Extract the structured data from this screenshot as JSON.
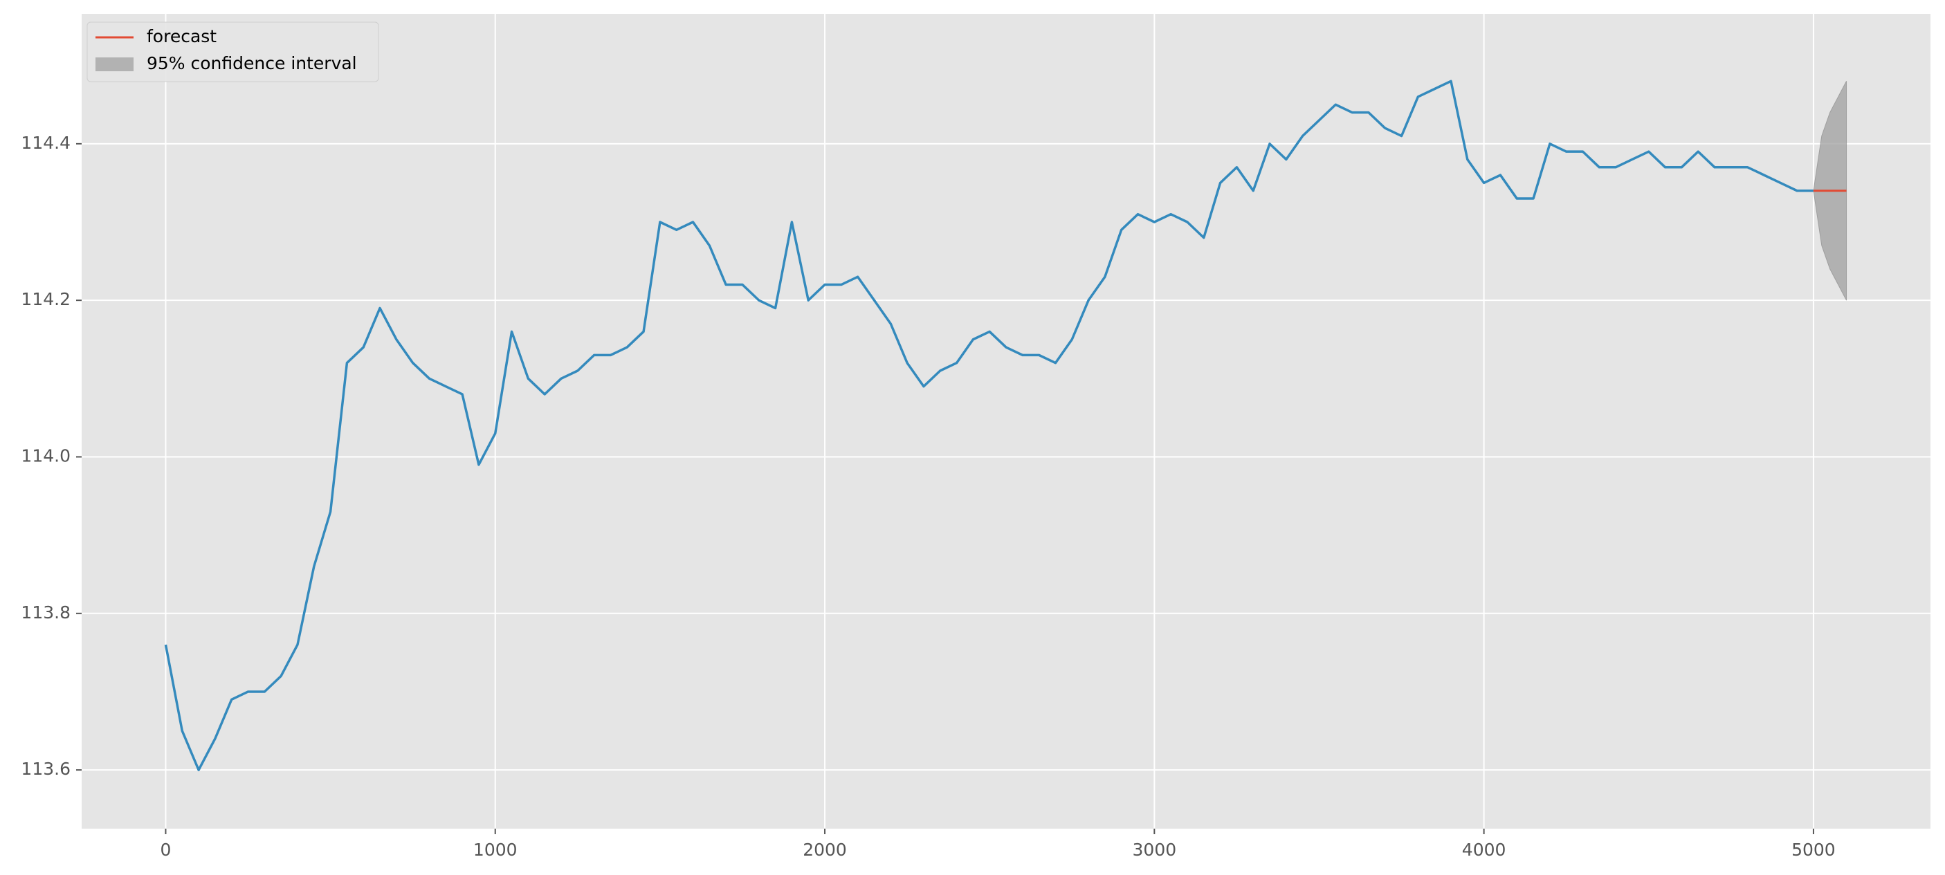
{
  "chart_data": {
    "type": "line",
    "series": [
      {
        "color": "#348abd",
        "x": [
          0,
          50,
          100,
          150,
          200,
          250,
          300,
          350,
          400,
          450,
          500,
          550,
          600,
          650,
          700,
          750,
          800,
          850,
          900,
          950,
          1000,
          1050,
          1100,
          1150,
          1200,
          1250,
          1300,
          1350,
          1400,
          1450,
          1500,
          1550,
          1600,
          1650,
          1700,
          1750,
          1800,
          1850,
          1900,
          1950,
          2000,
          2050,
          2100,
          2150,
          2200,
          2250,
          2300,
          2350,
          2400,
          2450,
          2500,
          2550,
          2600,
          2650,
          2700,
          2750,
          2800,
          2850,
          2900,
          2950,
          3000,
          3050,
          3100,
          3150,
          3200,
          3250,
          3300,
          3350,
          3400,
          3450,
          3500,
          3550,
          3600,
          3650,
          3700,
          3750,
          3800,
          3850,
          3900,
          3950,
          4000,
          4050,
          4100,
          4150,
          4200,
          4250,
          4300,
          4350,
          4400,
          4450,
          4500,
          4550,
          4600,
          4650,
          4700,
          4750,
          4800,
          4850,
          4900,
          4950,
          5000
        ],
        "values": [
          113.76,
          113.65,
          113.6,
          113.64,
          113.69,
          113.7,
          113.7,
          113.72,
          113.76,
          113.86,
          113.93,
          114.12,
          114.14,
          114.19,
          114.15,
          114.12,
          114.1,
          114.09,
          114.08,
          113.99,
          114.03,
          114.16,
          114.1,
          114.08,
          114.1,
          114.11,
          114.13,
          114.13,
          114.14,
          114.16,
          114.3,
          114.29,
          114.3,
          114.27,
          114.22,
          114.22,
          114.2,
          114.19,
          114.3,
          114.2,
          114.22,
          114.22,
          114.23,
          114.2,
          114.17,
          114.12,
          114.09,
          114.11,
          114.12,
          114.15,
          114.16,
          114.14,
          114.13,
          114.13,
          114.12,
          114.15,
          114.2,
          114.23,
          114.29,
          114.31,
          114.3,
          114.31,
          114.3,
          114.28,
          114.35,
          114.37,
          114.34,
          114.4,
          114.38,
          114.41,
          114.43,
          114.45,
          114.44,
          114.44,
          114.42,
          114.41,
          114.46,
          114.47,
          114.48,
          114.38,
          114.35,
          114.36,
          114.33,
          114.33,
          114.4,
          114.39,
          114.39,
          114.37,
          114.37,
          114.38,
          114.39,
          114.37,
          114.37,
          114.39,
          114.37,
          114.37,
          114.37,
          114.36,
          114.35,
          114.34,
          114.34
        ]
      }
    ],
    "forecast": {
      "name": "forecast",
      "color": "#e24a33",
      "x": [
        5000,
        5025,
        5050,
        5075,
        5100
      ],
      "values": [
        114.34,
        114.34,
        114.34,
        114.34,
        114.34
      ]
    },
    "confidence_interval": {
      "name": "95% confidence interval",
      "color": "#a0a0a0",
      "x": [
        5000,
        5025,
        5050,
        5075,
        5100
      ],
      "lower": [
        114.34,
        114.27,
        114.24,
        114.22,
        114.2
      ],
      "upper": [
        114.34,
        114.41,
        114.44,
        114.46,
        114.48
      ]
    },
    "xlim": [
      -255,
      5355
    ],
    "ylim": [
      113.525,
      114.566
    ],
    "xticks": [
      0,
      1000,
      2000,
      3000,
      4000,
      5000
    ],
    "yticks": [
      113.6,
      113.8,
      {
        "value": 114,
        "label": "114.0"
      },
      114.2,
      114.4
    ],
    "grid": true,
    "legend": "upper left"
  }
}
